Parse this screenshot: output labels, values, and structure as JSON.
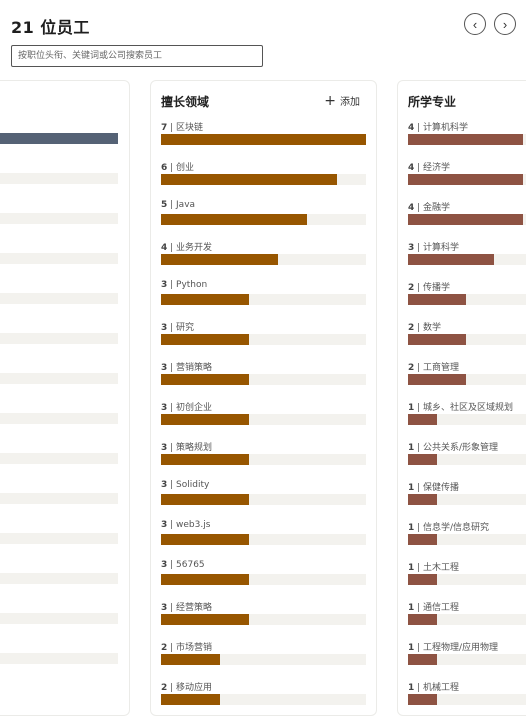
{
  "header": {
    "title": "21 位员工",
    "prev_icon": "chevron-left-icon",
    "next_icon": "chevron-right-icon",
    "prev_glyph": "‹",
    "next_glyph": "›"
  },
  "search": {
    "placeholder": "按职位头衔、关键词或公司搜索员工"
  },
  "left_panel": {
    "bars": [
      1,
      0,
      0,
      0,
      0,
      0,
      0,
      0,
      0,
      0,
      0,
      0,
      0,
      0
    ],
    "active_color": "#556275",
    "track_color": "#f3f2ee"
  },
  "skills_panel": {
    "title": "擅长领域",
    "add_label": "添加",
    "add_icon": "plus-icon",
    "bar_color": "#975600",
    "max": 7,
    "items": [
      {
        "count": "7",
        "label": " | 区块链",
        "value": 7
      },
      {
        "count": "6",
        "label": " | 创业",
        "value": 6
      },
      {
        "count": "5",
        "label": " | Java",
        "value": 5
      },
      {
        "count": "4",
        "label": " | 业务开发",
        "value": 4
      },
      {
        "count": "3",
        "label": " | Python",
        "value": 3
      },
      {
        "count": "3",
        "label": " | 研究",
        "value": 3
      },
      {
        "count": "3",
        "label": " | 营销策略",
        "value": 3
      },
      {
        "count": "3",
        "label": " | 初创企业",
        "value": 3
      },
      {
        "count": "3",
        "label": " | 策略规划",
        "value": 3
      },
      {
        "count": "3",
        "label": " | Solidity",
        "value": 3
      },
      {
        "count": "3",
        "label": " | web3.js",
        "value": 3
      },
      {
        "count": "3",
        "label": " | 56765",
        "value": 3
      },
      {
        "count": "3",
        "label": " | 经营策略",
        "value": 3
      },
      {
        "count": "2",
        "label": " | 市场营销",
        "value": 2
      },
      {
        "count": "2",
        "label": " | 移动应用",
        "value": 2
      }
    ]
  },
  "majors_panel": {
    "title": "所学专业",
    "bar_color": "#8e5343",
    "max": 4,
    "items": [
      {
        "count": "4",
        "label": " | 计算机科学",
        "value": 4
      },
      {
        "count": "4",
        "label": " | 经济学",
        "value": 4
      },
      {
        "count": "4",
        "label": " | 金融学",
        "value": 4
      },
      {
        "count": "3",
        "label": " | 计算科学",
        "value": 3
      },
      {
        "count": "2",
        "label": " | 传播学",
        "value": 2
      },
      {
        "count": "2",
        "label": " | 数学",
        "value": 2
      },
      {
        "count": "2",
        "label": " | 工商管理",
        "value": 2
      },
      {
        "count": "1",
        "label": " | 城乡、社区及区域规划",
        "value": 1
      },
      {
        "count": "1",
        "label": " | 公共关系/形象管理",
        "value": 1
      },
      {
        "count": "1",
        "label": " | 保健传播",
        "value": 1
      },
      {
        "count": "1",
        "label": " | 信息学/信息研究",
        "value": 1
      },
      {
        "count": "1",
        "label": " | 土木工程",
        "value": 1
      },
      {
        "count": "1",
        "label": " | 通信工程",
        "value": 1
      },
      {
        "count": "1",
        "label": " | 工程物理/应用物理",
        "value": 1
      },
      {
        "count": "1",
        "label": " | 机械工程",
        "value": 1
      }
    ]
  }
}
